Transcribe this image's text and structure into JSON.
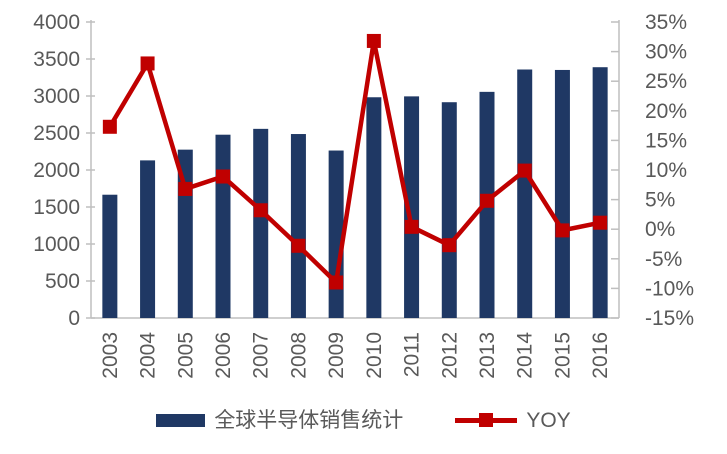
{
  "chart_data": {
    "type": "combo-bar-line",
    "title": "",
    "categories": [
      "2003",
      "2004",
      "2005",
      "2006",
      "2007",
      "2008",
      "2009",
      "2010",
      "2011",
      "2012",
      "2013",
      "2014",
      "2015",
      "2016"
    ],
    "series": [
      {
        "name": "全球半导体销售统计",
        "type": "bar",
        "axis": "left",
        "color": "#1F3864",
        "values": [
          1666,
          2130,
          2275,
          2477,
          2556,
          2486,
          2263,
          2983,
          2995,
          2916,
          3056,
          3358,
          3352,
          3389
        ]
      },
      {
        "name": "YOY",
        "type": "line",
        "axis": "right",
        "color": "#C00000",
        "marker": "square",
        "unit": "%",
        "values": [
          17.3,
          28.0,
          6.8,
          8.9,
          3.2,
          -2.8,
          -9.0,
          31.8,
          0.4,
          -2.7,
          4.8,
          9.9,
          -0.2,
          1.1
        ]
      }
    ],
    "left_axis": {
      "min": 0,
      "max": 4000,
      "step": 500,
      "tick_labels": [
        "4000",
        "3500",
        "3000",
        "2500",
        "2000",
        "1500",
        "1000",
        "500",
        "0"
      ],
      "tick_values": [
        4000,
        3500,
        3000,
        2500,
        2000,
        1500,
        1000,
        500,
        0
      ]
    },
    "right_axis": {
      "min": -15,
      "max": 35,
      "step": 5,
      "tick_labels": [
        "35%",
        "30%",
        "25%",
        "20%",
        "15%",
        "10%",
        "5%",
        "0%",
        "-5%",
        "-10%",
        "-15%"
      ],
      "tick_values": [
        35,
        30,
        25,
        20,
        15,
        10,
        5,
        0,
        -5,
        -10,
        -15
      ]
    },
    "x_axis": {
      "label_rotation": -90
    },
    "legend": {
      "position": "bottom",
      "entries": [
        "全球半导体销售统计",
        "YOY"
      ]
    },
    "grid": false,
    "colors": {
      "bar": "#1F3864",
      "line": "#C00000",
      "axis_line": "#BFBFBF",
      "tick_text": "#595959",
      "background": "#FFFFFF"
    }
  }
}
